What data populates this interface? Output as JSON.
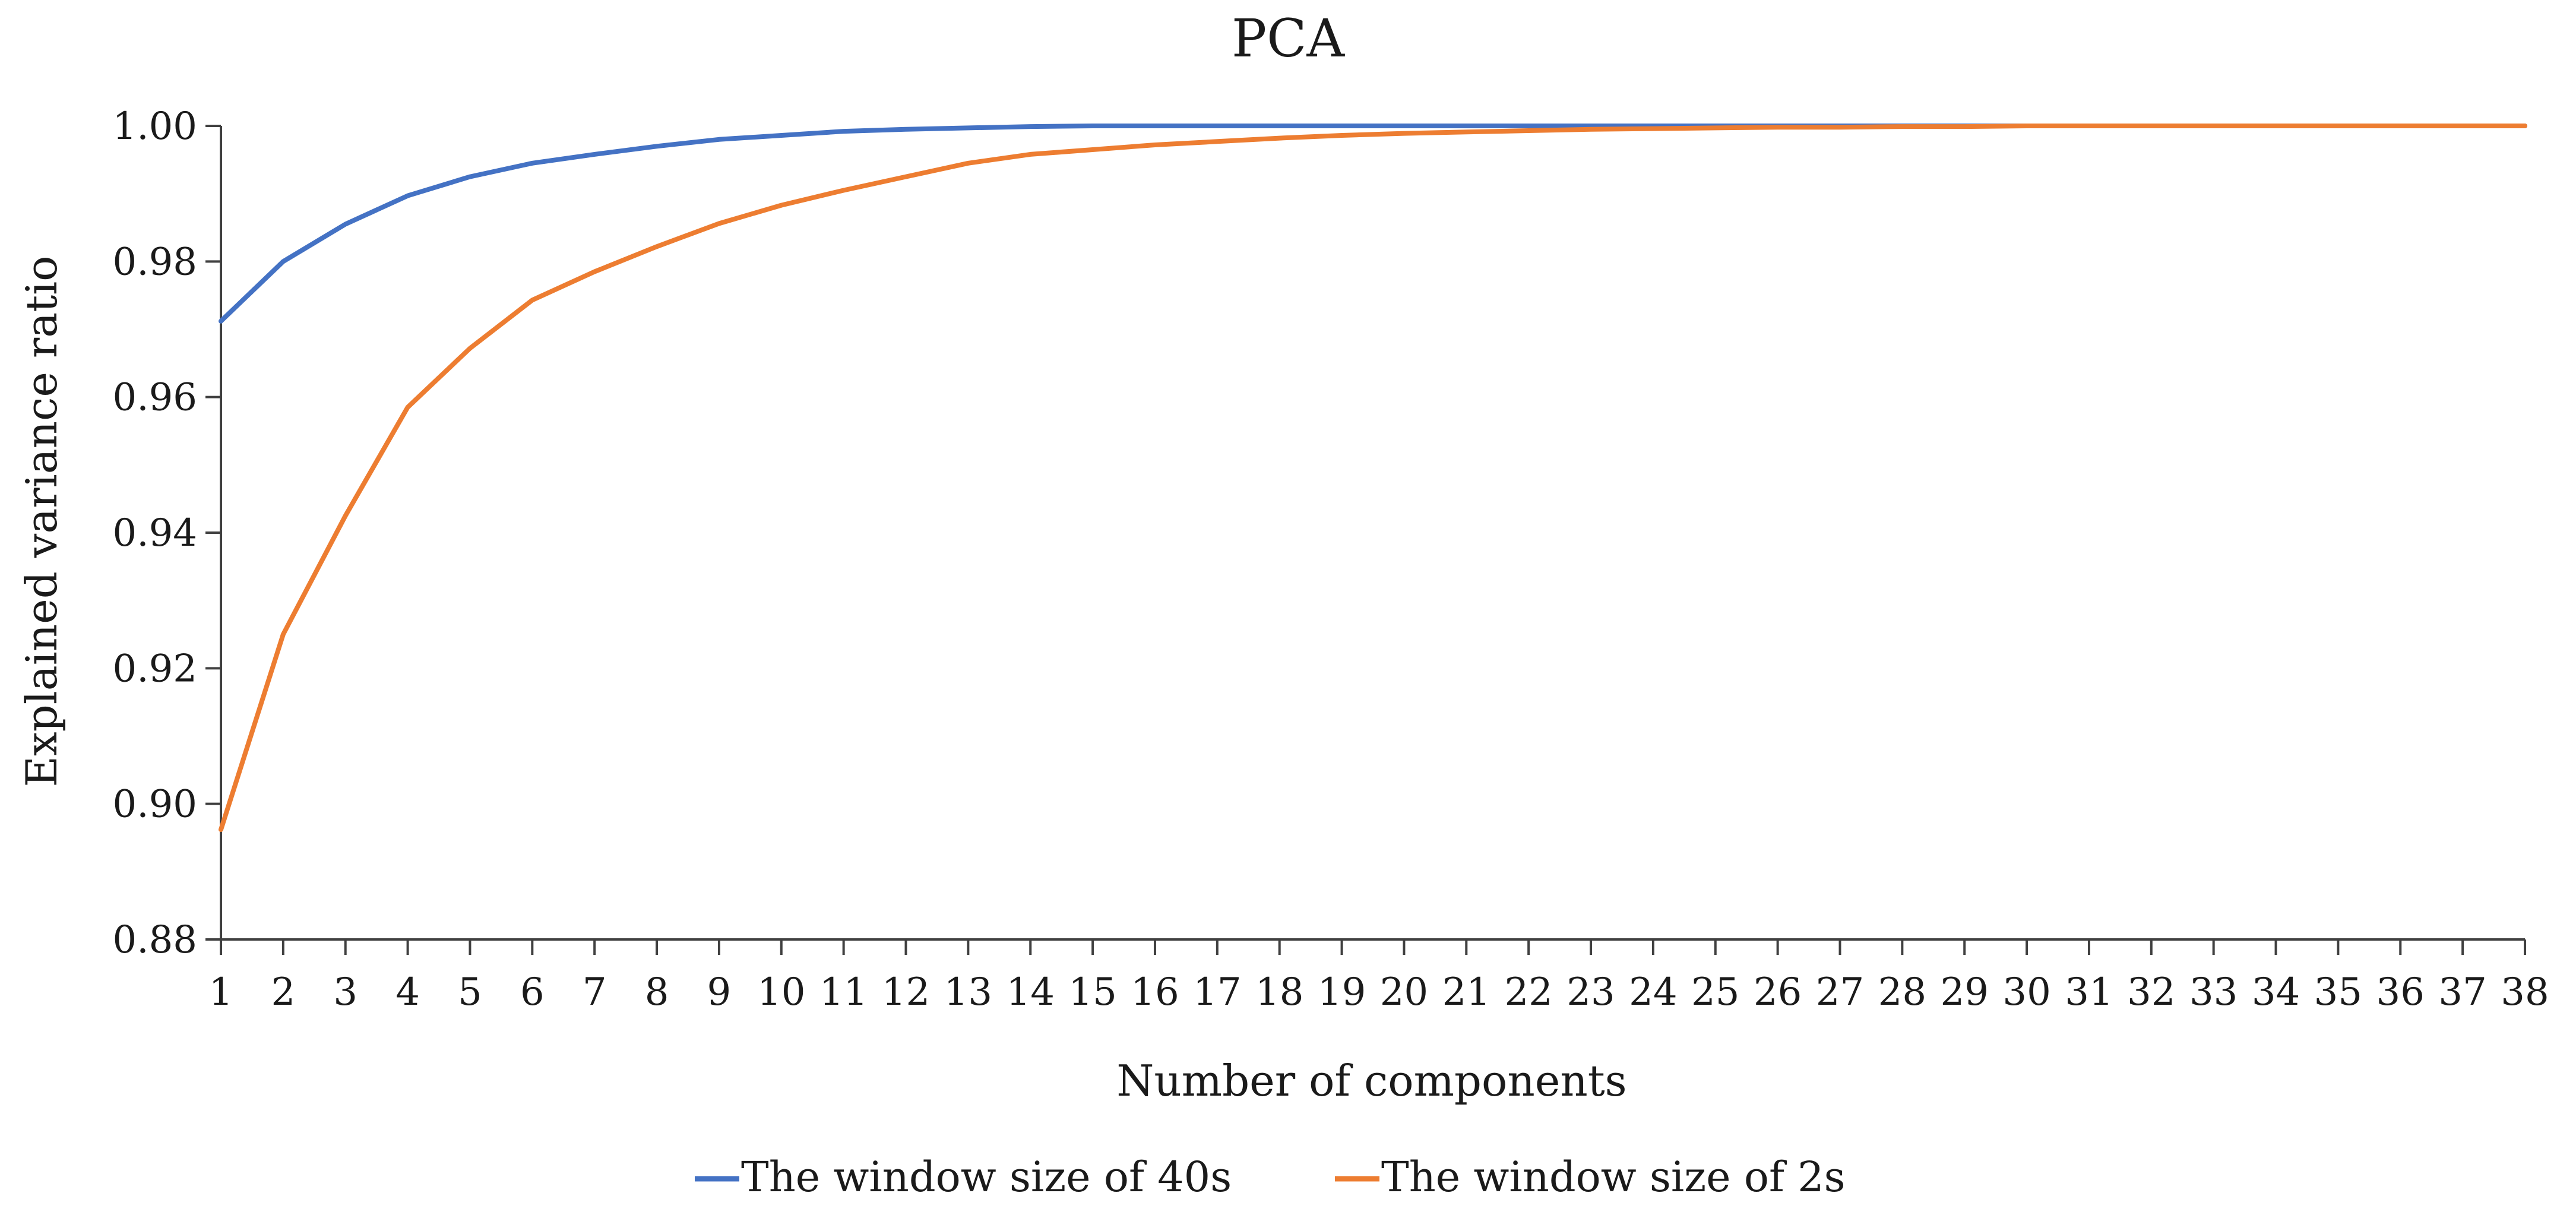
{
  "chart_data": {
    "type": "line",
    "title": "PCA",
    "xlabel": "Number of components",
    "ylabel": "Explained variance ratio",
    "x": [
      1,
      2,
      3,
      4,
      5,
      6,
      7,
      8,
      9,
      10,
      11,
      12,
      13,
      14,
      15,
      16,
      17,
      18,
      19,
      20,
      21,
      22,
      23,
      24,
      25,
      26,
      27,
      28,
      29,
      30,
      31,
      32,
      33,
      34,
      35,
      36,
      37,
      38
    ],
    "xlim": [
      1,
      38
    ],
    "ylim": [
      0.88,
      1.0
    ],
    "yticks": [
      0.88,
      0.9,
      0.92,
      0.94,
      0.96,
      0.98,
      1.0
    ],
    "ytick_labels": [
      "0.88",
      "0.90",
      "0.92",
      "0.94",
      "0.96",
      "0.98",
      "1.00"
    ],
    "grid": false,
    "legend_position": "bottom",
    "series": [
      {
        "name": "The window size of 40s",
        "color": "#4472C4",
        "values": [
          0.9712,
          0.98,
          0.9855,
          0.9897,
          0.9925,
          0.9945,
          0.9958,
          0.997,
          0.998,
          0.9986,
          0.9992,
          0.9995,
          0.9997,
          0.9999,
          1.0,
          1.0,
          1.0,
          1.0,
          1.0,
          1.0,
          1.0,
          1.0,
          1.0,
          1.0,
          1.0,
          1.0,
          1.0,
          1.0,
          1.0,
          1.0,
          1.0,
          1.0,
          1.0,
          1.0,
          1.0,
          1.0,
          1.0,
          1.0
        ]
      },
      {
        "name": "The window size of 2s",
        "color": "#ED7D31",
        "values": [
          0.8962,
          0.925,
          0.9425,
          0.9585,
          0.9672,
          0.9743,
          0.9785,
          0.9822,
          0.9856,
          0.9883,
          0.9905,
          0.9925,
          0.9945,
          0.9958,
          0.9965,
          0.9972,
          0.9977,
          0.9982,
          0.9986,
          0.9989,
          0.9991,
          0.9993,
          0.9995,
          0.9996,
          0.9997,
          0.9998,
          0.9998,
          0.9999,
          0.9999,
          1.0,
          1.0,
          1.0,
          1.0,
          1.0,
          1.0,
          1.0,
          1.0,
          1.0
        ]
      }
    ]
  }
}
